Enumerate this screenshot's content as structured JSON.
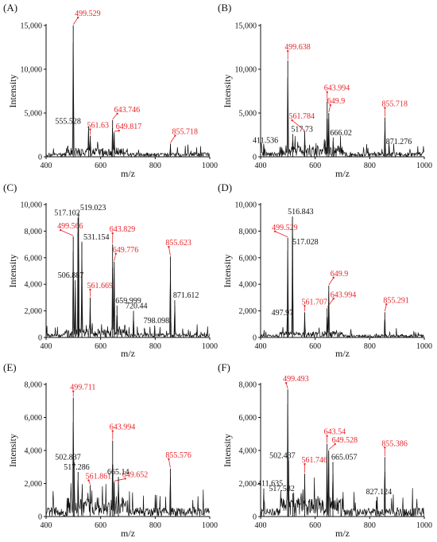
{
  "figure": {
    "title": "",
    "note": "Six mass-spectrum panels (A)–(F), 2 columns x 3 rows"
  },
  "chart_data": [
    {
      "panel": "(A)",
      "type": "line",
      "xlabel": "m/z",
      "ylabel": "Intensity",
      "xlim": [
        400,
        1000
      ],
      "ylim": [
        0,
        15000
      ],
      "xticks": [
        "400",
        "600",
        "800",
        "1000"
      ],
      "yticks": [
        "0",
        "5,000",
        "10,000",
        "15,000"
      ],
      "peaks": [
        {
          "mz": 499.529,
          "intensity": 15000,
          "label": "499.529",
          "color": "red"
        },
        {
          "mz": 555.528,
          "intensity": 3500,
          "label": "555.528",
          "color": "black"
        },
        {
          "mz": 561.63,
          "intensity": 2400,
          "label": "561.63",
          "color": "red"
        },
        {
          "mz": 643.746,
          "intensity": 4200,
          "label": "643.746",
          "color": "red"
        },
        {
          "mz": 649.817,
          "intensity": 2800,
          "label": "649.817",
          "color": "red"
        },
        {
          "mz": 855.718,
          "intensity": 1500,
          "label": "855.718",
          "color": "red"
        }
      ],
      "noise": 800
    },
    {
      "panel": "(B)",
      "type": "line",
      "xlabel": "m/z",
      "ylabel": "Intensity",
      "xlim": [
        400,
        1000
      ],
      "ylim": [
        0,
        15000
      ],
      "xticks": [
        "400",
        "600",
        "800",
        "1000"
      ],
      "yticks": [
        "0",
        "5,000",
        "10,000",
        "15,000"
      ],
      "peaks": [
        {
          "mz": 411.536,
          "intensity": 1300,
          "label": "411.536",
          "color": "black"
        },
        {
          "mz": 499.638,
          "intensity": 11000,
          "label": "499.638",
          "color": "red"
        },
        {
          "mz": 517.73,
          "intensity": 2600,
          "label": "517.73",
          "color": "black"
        },
        {
          "mz": 561.784,
          "intensity": 2900,
          "label": "561.784",
          "color": "red"
        },
        {
          "mz": 643.994,
          "intensity": 6300,
          "label": "643.994",
          "color": "red"
        },
        {
          "mz": 649.9,
          "intensity": 5000,
          "label": "649.9",
          "color": "red"
        },
        {
          "mz": 666.02,
          "intensity": 2200,
          "label": "666.02",
          "color": "black"
        },
        {
          "mz": 855.718,
          "intensity": 4500,
          "label": "855.718",
          "color": "red"
        },
        {
          "mz": 871.276,
          "intensity": 1200,
          "label": "871.276",
          "color": "black"
        }
      ],
      "noise": 900
    },
    {
      "panel": "(C)",
      "type": "line",
      "xlabel": "m/z",
      "ylabel": "Intensity",
      "xlim": [
        400,
        1000
      ],
      "ylim": [
        0,
        10000
      ],
      "xticks": [
        "400",
        "600",
        "800",
        "1000"
      ],
      "yticks": [
        "0",
        "2,000",
        "4,000",
        "6,000",
        "8,000",
        "10,000"
      ],
      "peaks": [
        {
          "mz": 499.566,
          "intensity": 7600,
          "label": "499.566",
          "color": "red"
        },
        {
          "mz": 506.887,
          "intensity": 4300,
          "label": "506.887",
          "color": "black"
        },
        {
          "mz": 517.102,
          "intensity": 9000,
          "label": "517.102",
          "color": "black"
        },
        {
          "mz": 519.023,
          "intensity": 9400,
          "label": "519.023",
          "color": "black"
        },
        {
          "mz": 531.154,
          "intensity": 7200,
          "label": "531.154",
          "color": "black"
        },
        {
          "mz": 561.669,
          "intensity": 3000,
          "label": "561.669",
          "color": "red"
        },
        {
          "mz": 643.829,
          "intensity": 7000,
          "label": "643.829",
          "color": "red"
        },
        {
          "mz": 649.776,
          "intensity": 5700,
          "label": "649.776",
          "color": "red"
        },
        {
          "mz": 659.999,
          "intensity": 2400,
          "label": "659.999",
          "color": "black"
        },
        {
          "mz": 720.44,
          "intensity": 2000,
          "label": "720.44",
          "color": "black"
        },
        {
          "mz": 798.098,
          "intensity": 900,
          "label": "798.098",
          "color": "black"
        },
        {
          "mz": 855.623,
          "intensity": 6100,
          "label": "855.623",
          "color": "red"
        },
        {
          "mz": 871.612,
          "intensity": 2800,
          "label": "871.612",
          "color": "black"
        }
      ],
      "noise": 500
    },
    {
      "panel": "(D)",
      "type": "line",
      "xlabel": "m/z",
      "ylabel": "Intensity",
      "xlim": [
        400,
        1000
      ],
      "ylim": [
        0,
        10000
      ],
      "xticks": [
        "400",
        "600",
        "800",
        "1000"
      ],
      "yticks": [
        "0",
        "2,000",
        "4,000",
        "6,000",
        "8,000",
        "10,000"
      ],
      "peaks": [
        {
          "mz": 497.97,
          "intensity": 1500,
          "label": "497.97",
          "color": "black"
        },
        {
          "mz": 499.529,
          "intensity": 7500,
          "label": "499.529",
          "color": "red"
        },
        {
          "mz": 516.843,
          "intensity": 9100,
          "label": "516.843",
          "color": "black"
        },
        {
          "mz": 517.028,
          "intensity": 7600,
          "label": "517.028",
          "color": "black"
        },
        {
          "mz": 561.707,
          "intensity": 1900,
          "label": "561.707",
          "color": "red"
        },
        {
          "mz": 643.994,
          "intensity": 2200,
          "label": "643.994",
          "color": "red"
        },
        {
          "mz": 649.9,
          "intensity": 3900,
          "label": "649.9",
          "color": "red"
        },
        {
          "mz": 855.291,
          "intensity": 1900,
          "label": "855.291",
          "color": "red"
        }
      ],
      "noise": 350
    },
    {
      "panel": "(E)",
      "type": "line",
      "xlabel": "m/z",
      "ylabel": "Intensity",
      "xlim": [
        400,
        1000
      ],
      "ylim": [
        0,
        8000
      ],
      "xticks": [
        "400",
        "600",
        "800",
        "1000"
      ],
      "yticks": [
        "0",
        "2,000",
        "4,000",
        "6,000",
        "8,000"
      ],
      "peaks": [
        {
          "mz": 499.711,
          "intensity": 7200,
          "label": "499.711",
          "color": "red"
        },
        {
          "mz": 502.837,
          "intensity": 3300,
          "label": "502.837",
          "color": "black"
        },
        {
          "mz": 517.286,
          "intensity": 2700,
          "label": "517.286",
          "color": "black"
        },
        {
          "mz": 561.861,
          "intensity": 1900,
          "label": "561.861",
          "color": "red"
        },
        {
          "mz": 643.994,
          "intensity": 4600,
          "label": "643.994",
          "color": "red"
        },
        {
          "mz": 649.652,
          "intensity": 2100,
          "label": "649.652",
          "color": "red"
        },
        {
          "mz": 665.14,
          "intensity": 2400,
          "label": "665.14",
          "color": "black"
        },
        {
          "mz": 855.576,
          "intensity": 2900,
          "label": "855.576",
          "color": "red"
        }
      ],
      "noise": 900
    },
    {
      "panel": "(F)",
      "type": "line",
      "xlabel": "m/z",
      "ylabel": "Intensity",
      "xlim": [
        400,
        1000
      ],
      "ylim": [
        0,
        8000
      ],
      "xticks": [
        "400",
        "600",
        "800",
        "1000"
      ],
      "yticks": [
        "0",
        "2,000",
        "4,000",
        "6,000",
        "8,000"
      ],
      "peaks": [
        {
          "mz": 411.635,
          "intensity": 1700,
          "label": "411.635",
          "color": "black"
        },
        {
          "mz": 499.493,
          "intensity": 7700,
          "label": "499.493",
          "color": "red"
        },
        {
          "mz": 502.437,
          "intensity": 3400,
          "label": "502.437",
          "color": "black"
        },
        {
          "mz": 517.582,
          "intensity": 1400,
          "label": "517.582",
          "color": "black"
        },
        {
          "mz": 561.746,
          "intensity": 2600,
          "label": "561.746",
          "color": "red"
        },
        {
          "mz": 643.54,
          "intensity": 4400,
          "label": "643.54",
          "color": "red"
        },
        {
          "mz": 649.528,
          "intensity": 4000,
          "label": "649.528",
          "color": "red"
        },
        {
          "mz": 665.057,
          "intensity": 3300,
          "label": "665.057",
          "color": "black"
        },
        {
          "mz": 827.124,
          "intensity": 1200,
          "label": "827.124",
          "color": "black"
        },
        {
          "mz": 855.386,
          "intensity": 3600,
          "label": "855.386",
          "color": "red"
        }
      ],
      "noise": 900
    }
  ],
  "colors": {
    "annotation_red": "#e8242a",
    "annotation_black": "#111111",
    "trace": "#111111",
    "axis": "#111111"
  }
}
